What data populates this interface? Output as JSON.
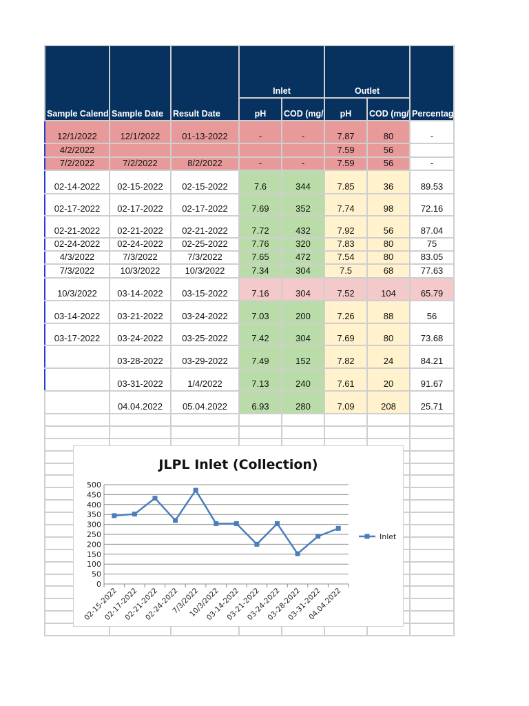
{
  "header": {
    "sample_calender": "Sample Calender",
    "sample_date": "Sample Date",
    "result_date": "Result Date",
    "inlet": "Inlet",
    "outlet": "Outlet",
    "ph": "pH",
    "cod": "COD (mg/L)",
    "percentage": "Percentage reduction in COD from inlet to outlet"
  },
  "rows": [
    {
      "cal": "12/1/2022",
      "sample": "12/1/2022",
      "result": "01-13-2022",
      "in_ph": "-",
      "in_cod": "-",
      "out_ph": "7.87",
      "out_cod": "80",
      "pct": "-",
      "style": "red"
    },
    {
      "cal": "4/2/2022",
      "sample": "",
      "result": "",
      "in_ph": "",
      "in_cod": "",
      "out_ph": "7.59",
      "out_cod": "56",
      "pct": "",
      "style": "red"
    },
    {
      "cal": "7/2/2022",
      "sample": "7/2/2022",
      "result": "8/2/2022",
      "in_ph": "-",
      "in_cod": "-",
      "out_ph": "7.59",
      "out_cod": "56",
      "pct": "-",
      "style": "red"
    },
    {
      "cal": "02-14-2022",
      "sample": "02-15-2022",
      "result": "02-15-2022",
      "in_ph": "7.6",
      "in_cod": "344",
      "out_ph": "7.85",
      "out_cod": "36",
      "pct": "89.53",
      "style": "normal"
    },
    {
      "cal": "02-17-2022",
      "sample": "02-17-2022",
      "result": "02-17-2022",
      "in_ph": "7.69",
      "in_cod": "352",
      "out_ph": "7.74",
      "out_cod": "98",
      "pct": "72.16",
      "style": "normal"
    },
    {
      "cal": "02-21-2022",
      "sample": "02-21-2022",
      "result": "02-21-2022",
      "in_ph": "7.72",
      "in_cod": "432",
      "out_ph": "7.92",
      "out_cod": "56",
      "pct": "87.04",
      "style": "normal"
    },
    {
      "cal": "02-24-2022",
      "sample": "02-24-2022",
      "result": "02-25-2022",
      "in_ph": "7.76",
      "in_cod": "320",
      "out_ph": "7.83",
      "out_cod": "80",
      "pct": "75",
      "style": "normal"
    },
    {
      "cal": "4/3/2022",
      "sample": "7/3/2022",
      "result": "7/3/2022",
      "in_ph": "7.65",
      "in_cod": "472",
      "out_ph": "7.54",
      "out_cod": "80",
      "pct": "83.05",
      "style": "normal"
    },
    {
      "cal": "7/3/2022",
      "sample": "10/3/2022",
      "result": "10/3/2022",
      "in_ph": "7.34",
      "in_cod": "304",
      "out_ph": "7.5",
      "out_cod": "68",
      "pct": "77.63",
      "style": "normal"
    },
    {
      "cal": "10/3/2022",
      "sample": "03-14-2022",
      "result": "03-15-2022",
      "in_ph": "7.16",
      "in_cod": "304",
      "out_ph": "7.52",
      "out_cod": "104",
      "pct": "65.79",
      "style": "lightred"
    },
    {
      "cal": "03-14-2022",
      "sample": "03-21-2022",
      "result": "03-24-2022",
      "in_ph": "7.03",
      "in_cod": "200",
      "out_ph": "7.26",
      "out_cod": "88",
      "pct": "56",
      "style": "normal"
    },
    {
      "cal": "03-17-2022",
      "sample": "03-24-2022",
      "result": "03-25-2022",
      "in_ph": "7.42",
      "in_cod": "304",
      "out_ph": "7.69",
      "out_cod": "80",
      "pct": "73.68",
      "style": "normal"
    },
    {
      "cal": "",
      "sample": "03-28-2022",
      "result": "03-29-2022",
      "in_ph": "7.49",
      "in_cod": "152",
      "out_ph": "7.82",
      "out_cod": "24",
      "pct": "84.21",
      "style": "normal"
    },
    {
      "cal": "",
      "sample": "03-31-2022",
      "result": "1/4/2022",
      "in_ph": "7.13",
      "in_cod": "240",
      "out_ph": "7.61",
      "out_cod": "20",
      "pct": "91.67",
      "style": "normal"
    },
    {
      "cal": "",
      "sample": "04.04.2022",
      "result": "05.04.2022",
      "in_ph": "6.93",
      "in_cod": "280",
      "out_ph": "7.09",
      "out_cod": "208",
      "pct": "25.71",
      "style": "normal"
    }
  ],
  "colors": {
    "header": "#07325f",
    "line": "#4a7ebb"
  },
  "chart_data": {
    "type": "line",
    "title": "JLPL Inlet (Collection)",
    "categories": [
      "02-15-2022",
      "02-17-2022",
      "02-21-2022",
      "02-24-2022",
      "7/3/2022",
      "10/3/2022",
      "03-14-2022",
      "03-21-2022",
      "03-24-2022",
      "03-28-2022",
      "03-31-2022",
      "04.04.2022"
    ],
    "series": [
      {
        "name": "Inlet",
        "values": [
          344,
          352,
          432,
          320,
          472,
          304,
          304,
          200,
          304,
          152,
          240,
          280
        ]
      }
    ],
    "yticks": [
      "0",
      "50",
      "100",
      "150",
      "200",
      "250",
      "300",
      "350",
      "400",
      "450",
      "500"
    ],
    "ylim": [
      0,
      500
    ],
    "grid": true,
    "legend": "right"
  }
}
